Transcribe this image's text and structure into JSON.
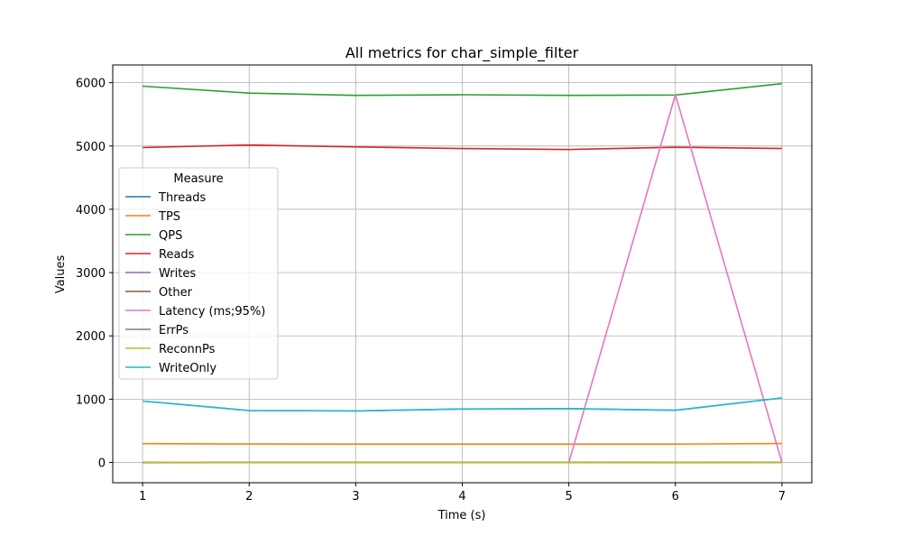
{
  "chart_data": {
    "type": "line",
    "title": "All metrics for char_simple_filter",
    "xlabel": "Time (s)",
    "ylabel": "Values",
    "x": [
      1,
      2,
      3,
      4,
      5,
      6,
      7
    ],
    "xticks": [
      "1",
      "2",
      "3",
      "4",
      "5",
      "6",
      "7"
    ],
    "yticks": [
      "0",
      "1000",
      "2000",
      "3000",
      "4000",
      "5000",
      "6000"
    ],
    "xlim": [
      0.72,
      7.28
    ],
    "ylim": [
      -320,
      6280
    ],
    "grid": true,
    "legend": {
      "title": "Measure",
      "placement": "center-left"
    },
    "series": [
      {
        "name": "Threads",
        "color": "#1f77b4",
        "values": [
          4,
          4,
          4,
          4,
          4,
          4,
          4
        ]
      },
      {
        "name": "TPS",
        "color": "#ff7f0e",
        "values": [
          297,
          292,
          290,
          290,
          290,
          290,
          299
        ]
      },
      {
        "name": "QPS",
        "color": "#2ca02c",
        "values": [
          5945,
          5835,
          5800,
          5810,
          5800,
          5805,
          5985
        ]
      },
      {
        "name": "Reads",
        "color": "#d62728",
        "values": [
          4975,
          5015,
          4985,
          4960,
          4945,
          4980,
          4960
        ]
      },
      {
        "name": "Writes",
        "color": "#9467bd",
        "values": [
          970,
          820,
          815,
          845,
          850,
          825,
          1020
        ]
      },
      {
        "name": "Other",
        "color": "#8c564b",
        "values": [
          0,
          0,
          0,
          0,
          0,
          0,
          0
        ]
      },
      {
        "name": "Latency (ms;95%)",
        "color": "#e377c2",
        "values": [
          0,
          0,
          0,
          0,
          0,
          5810,
          0
        ]
      },
      {
        "name": "ErrPs",
        "color": "#7f7f7f",
        "values": [
          0,
          0,
          0,
          0,
          0,
          0,
          0
        ]
      },
      {
        "name": "ReconnPs",
        "color": "#bcbd22",
        "values": [
          5,
          0,
          0,
          0,
          0,
          2,
          0
        ]
      },
      {
        "name": "WriteOnly",
        "color": "#17becf",
        "values": [
          970,
          820,
          815,
          845,
          850,
          825,
          1020
        ]
      }
    ]
  }
}
